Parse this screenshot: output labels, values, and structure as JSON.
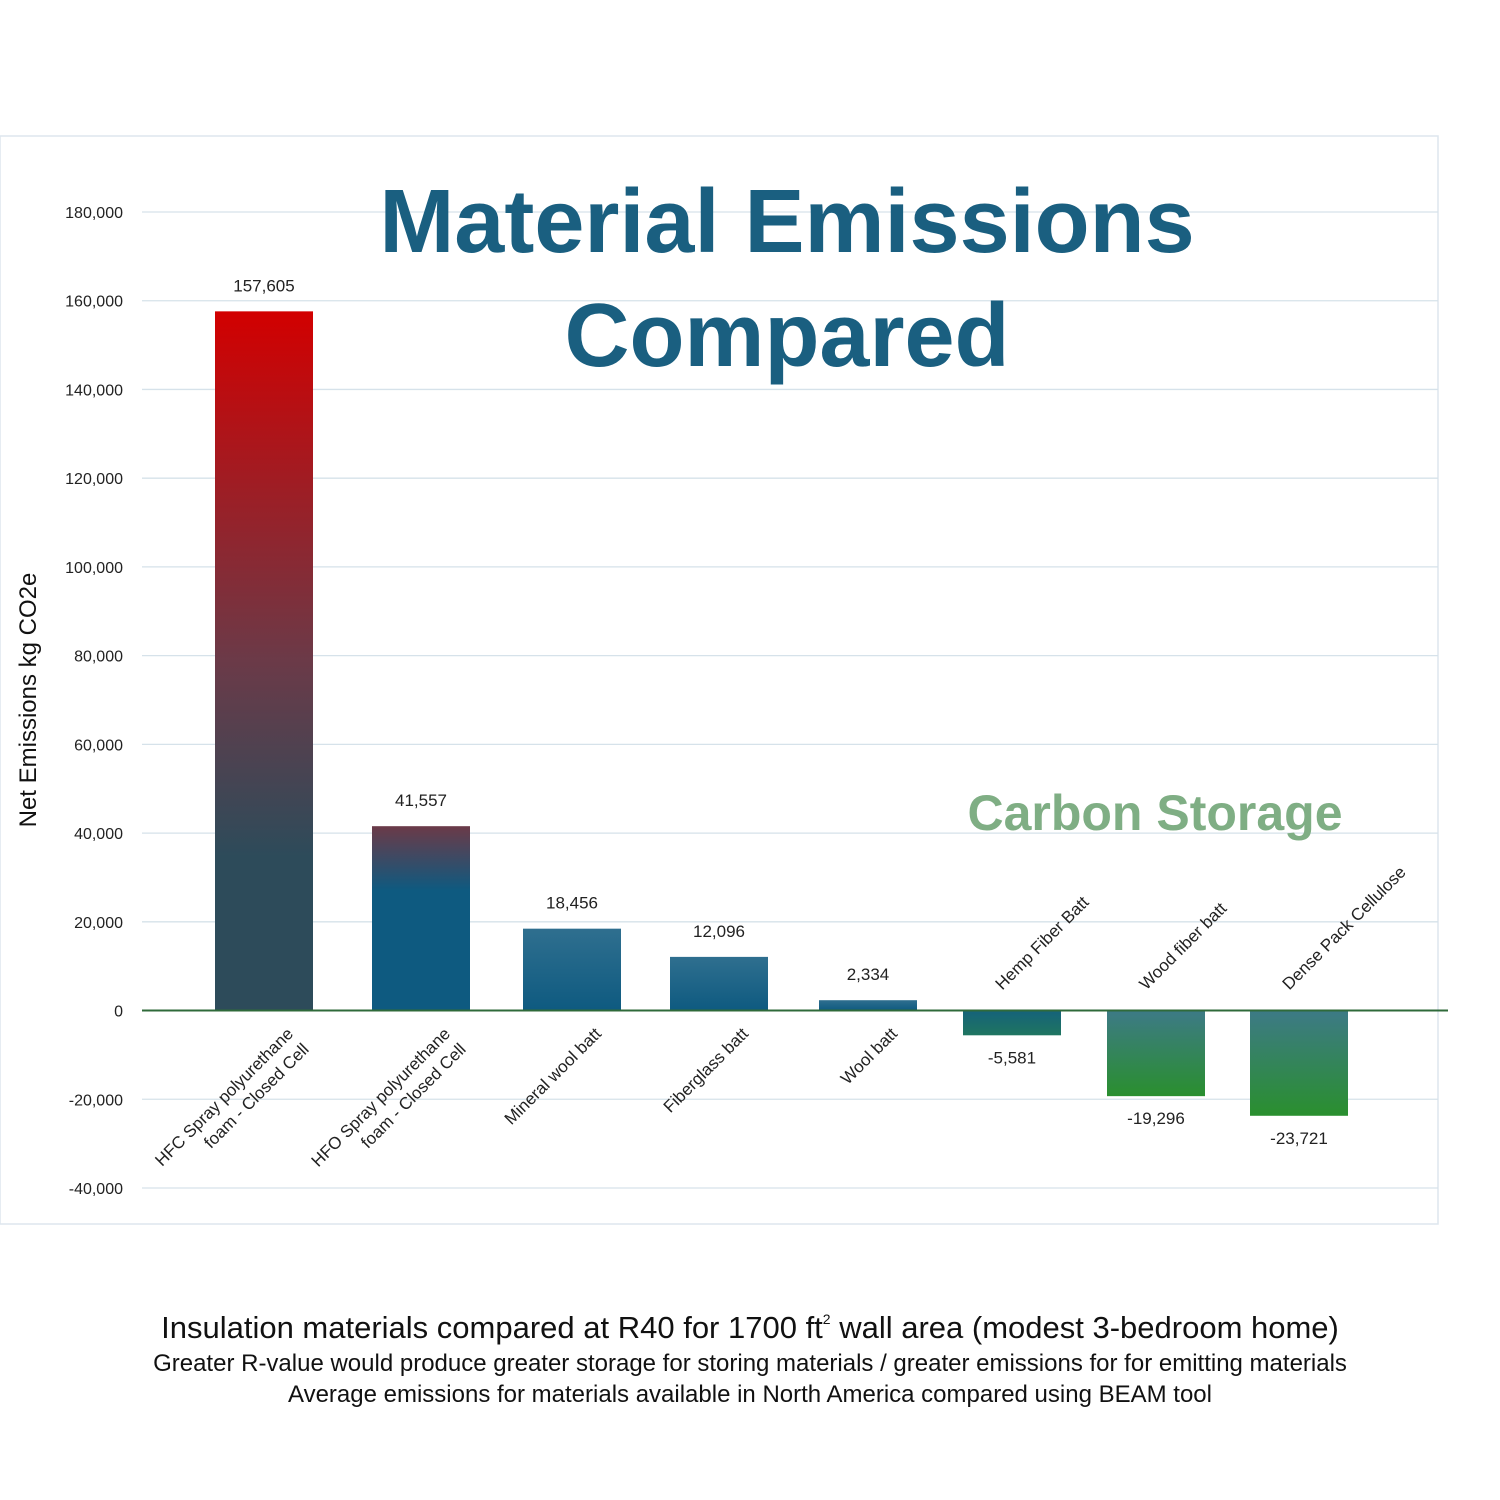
{
  "chart_data": {
    "type": "bar",
    "title_line1": "Material Emissions",
    "title_line2": "Compared",
    "annotation": "Carbon Storage",
    "ylabel": "Net Emissions kg CO2e",
    "xlabel": "",
    "ylim": [
      -40000,
      180000
    ],
    "yticks": [
      -40000,
      -20000,
      0,
      20000,
      40000,
      60000,
      80000,
      100000,
      120000,
      140000,
      160000,
      180000
    ],
    "ytick_labels": [
      "-40,000",
      "-20,000",
      "0",
      "20,000",
      "40,000",
      "60,000",
      "80,000",
      "100,000",
      "120,000",
      "140,000",
      "160,000",
      "180,000"
    ],
    "grid": true,
    "categories": [
      [
        "HFC Spray polyurethane",
        "foam - Closed Cell"
      ],
      [
        "HFO Spray polyurethane",
        "foam - Closed Cell"
      ],
      [
        "Mineral wool batt"
      ],
      [
        "Fiberglass batt"
      ],
      [
        "Wool batt"
      ],
      [
        "Hemp Fiber Batt"
      ],
      [
        "Wood fiber batt"
      ],
      [
        "Dense Pack Cellulose"
      ]
    ],
    "values": [
      157605,
      41557,
      18456,
      12096,
      2334,
      -5581,
      -19296,
      -23721
    ],
    "value_labels": [
      "157,605",
      "41,557",
      "18,456",
      "12,096",
      "2,334",
      "-5,581",
      "-19,296",
      "-23,721"
    ]
  },
  "colors": {
    "title": "#1a5f80",
    "annotation": "#7fae84",
    "grid": "#d6e2ea",
    "zero_line": "#2f6a3a",
    "emit_top": "#d20000",
    "emit_mid": "#6b3a48",
    "emit_base": "#2d4b5a",
    "blue_top": "#2f6f8f",
    "blue_base": "#0e5a80",
    "store_top": "#3d7a86",
    "store_bottom": "#2a8f2e"
  },
  "caption": {
    "line1_before": "Insulation materials compared at R40 for 1700 ft",
    "line1_sup": "2",
    "line1_after": " wall area (modest 3-bedroom home)",
    "line2": "Greater R-value would produce greater storage for storing materials / greater emissions for for emitting materials",
    "line3": "Average emissions for materials available in North America compared using BEAM tool"
  }
}
